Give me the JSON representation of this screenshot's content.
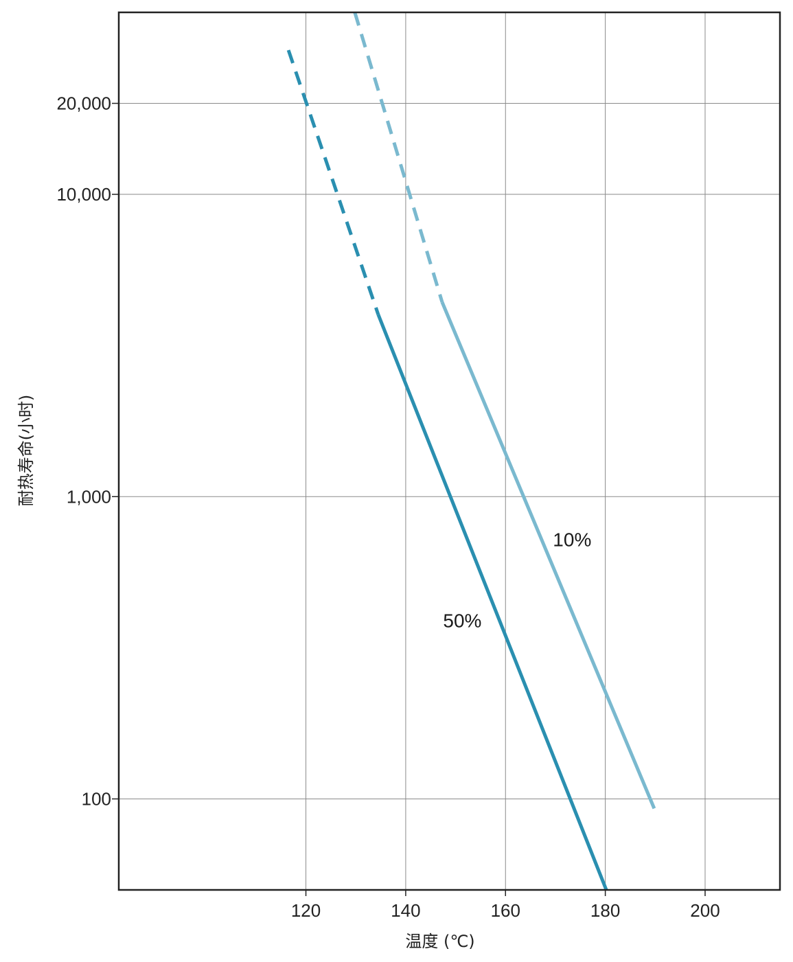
{
  "chart_data": {
    "type": "line",
    "title": "",
    "xlabel": "温度 (℃)",
    "ylabel": "耐热寿命(小时)",
    "xlim": [
      82.5,
      215
    ],
    "ylim": [
      50,
      40000
    ],
    "y_scale": "log",
    "grid": true,
    "x_ticks": [
      {
        "value": 120,
        "label": "120"
      },
      {
        "value": 140,
        "label": "140"
      },
      {
        "value": 160,
        "label": "160"
      },
      {
        "value": 180,
        "label": "180"
      },
      {
        "value": 200,
        "label": "200"
      }
    ],
    "y_ticks": [
      {
        "value": 100,
        "label": "100"
      },
      {
        "value": 1000,
        "label": "1,000"
      },
      {
        "value": 10000,
        "label": "10,000"
      },
      {
        "value": 20000,
        "label": "20,000"
      }
    ],
    "series": [
      {
        "name": "50%",
        "color": "#2a8fb0",
        "dashed_segment": {
          "x": [
            116.5,
            134.5
          ],
          "y": [
            30000,
            4000
          ]
        },
        "solid_segment": {
          "x": [
            134.5,
            180.2
          ],
          "y": [
            4000,
            50
          ]
        }
      },
      {
        "name": "10%",
        "color": "#7ab9cf",
        "dashed_segment": {
          "x": [
            129.8,
            147.3
          ],
          "y": [
            40000,
            4400
          ]
        },
        "solid_segment": {
          "x": [
            147.3,
            189.8
          ],
          "y": [
            4400,
            93
          ]
        }
      }
    ],
    "annotations": [
      {
        "text": "10%",
        "x": 169.5,
        "y": 685
      },
      {
        "text": "50%",
        "x": 147.5,
        "y": 370
      }
    ]
  }
}
